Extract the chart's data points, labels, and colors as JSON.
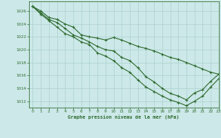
{
  "title": "Graphe pression niveau de la mer (hPa)",
  "bg_color": "#cce8e8",
  "grid_color": "#aacfcf",
  "line_color": "#2d6a2d",
  "xlim": [
    -0.5,
    23
  ],
  "ylim": [
    1011.0,
    1027.5
  ],
  "yticks": [
    1012,
    1014,
    1016,
    1018,
    1020,
    1022,
    1024,
    1026
  ],
  "xticks": [
    0,
    1,
    2,
    3,
    4,
    5,
    6,
    7,
    8,
    9,
    10,
    11,
    12,
    13,
    14,
    15,
    16,
    17,
    18,
    19,
    20,
    21,
    22,
    23
  ],
  "line1": [
    1026.7,
    1026.0,
    1025.0,
    1024.7,
    1024.0,
    1023.5,
    1022.3,
    1022.0,
    1021.8,
    1021.5,
    1021.9,
    1021.5,
    1021.0,
    1020.5,
    1020.2,
    1019.8,
    1019.3,
    1018.8,
    1018.5,
    1018.0,
    1017.5,
    1017.0,
    1016.5,
    1016.2
  ],
  "line2": [
    1026.7,
    1025.7,
    1024.7,
    1024.2,
    1023.3,
    1022.3,
    1021.8,
    1021.2,
    1020.5,
    1020.0,
    1019.8,
    1018.8,
    1018.3,
    1017.2,
    1015.8,
    1015.0,
    1014.0,
    1013.2,
    1012.8,
    1012.2,
    1013.3,
    1013.8,
    1015.1,
    1016.2
  ],
  "line3": [
    1026.7,
    1025.5,
    1024.5,
    1023.5,
    1022.5,
    1022.0,
    1021.2,
    1020.8,
    1019.5,
    1019.0,
    1018.3,
    1017.2,
    1016.5,
    1015.3,
    1014.2,
    1013.5,
    1012.8,
    1012.2,
    1011.8,
    1011.3,
    1012.0,
    1012.8,
    1014.2,
    1015.5
  ]
}
